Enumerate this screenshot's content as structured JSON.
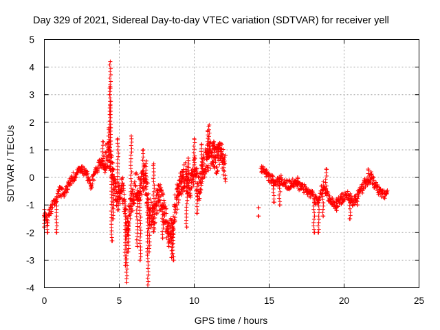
{
  "chart_data": {
    "type": "scatter",
    "title": "Day 329 of 2021, Sidereal Day-to-day VTEC variation (SDTVAR) for receiver yell",
    "xlabel": "GPS time / hours",
    "ylabel": "SDTVAR / TECUs",
    "xlim": [
      0,
      25
    ],
    "ylim": [
      -4,
      5
    ],
    "xticks": [
      "0",
      "5",
      "10",
      "15",
      "20",
      "25"
    ],
    "yticks": [
      "-4",
      "-3",
      "-2",
      "-1",
      "0",
      "1",
      "2",
      "3",
      "4",
      "5"
    ],
    "grid": true,
    "marker": "+",
    "color": "#ff0000",
    "data_gap_hours": [
      12.3,
      14.3
    ],
    "trend_points": [
      [
        0.0,
        -1.3
      ],
      [
        0.2,
        -1.6
      ],
      [
        0.4,
        -1.2
      ],
      [
        0.6,
        -1.0
      ],
      [
        0.8,
        -0.8
      ],
      [
        1.0,
        -0.5
      ],
      [
        1.3,
        -0.6
      ],
      [
        1.6,
        -0.3
      ],
      [
        1.9,
        0.0
      ],
      [
        2.2,
        0.2
      ],
      [
        2.5,
        0.3
      ],
      [
        2.8,
        0.1
      ],
      [
        3.1,
        -0.3
      ],
      [
        3.4,
        0.2
      ],
      [
        3.7,
        0.5
      ],
      [
        4.0,
        0.6
      ],
      [
        4.3,
        0.9
      ],
      [
        4.6,
        0.0
      ],
      [
        4.9,
        -0.8
      ],
      [
        5.2,
        -0.3
      ],
      [
        5.5,
        -1.8
      ],
      [
        5.8,
        -1.0
      ],
      [
        6.1,
        -0.3
      ],
      [
        6.4,
        -0.5
      ],
      [
        6.7,
        0.1
      ],
      [
        7.0,
        -1.2
      ],
      [
        7.3,
        -1.6
      ],
      [
        7.6,
        -0.6
      ],
      [
        7.9,
        -1.0
      ],
      [
        8.2,
        -1.8
      ],
      [
        8.5,
        -2.0
      ],
      [
        8.8,
        -0.8
      ],
      [
        9.1,
        -0.3
      ],
      [
        9.4,
        0.1
      ],
      [
        9.7,
        -0.4
      ],
      [
        10.0,
        0.3
      ],
      [
        10.3,
        -0.5
      ],
      [
        10.6,
        0.4
      ],
      [
        10.9,
        0.7
      ],
      [
        11.2,
        0.9
      ],
      [
        11.5,
        0.6
      ],
      [
        11.8,
        0.9
      ],
      [
        12.1,
        0.3
      ],
      [
        14.4,
        0.4
      ],
      [
        14.7,
        0.2
      ],
      [
        15.0,
        0.0
      ],
      [
        15.4,
        -0.2
      ],
      [
        15.8,
        -0.1
      ],
      [
        16.2,
        -0.3
      ],
      [
        16.6,
        -0.2
      ],
      [
        17.0,
        -0.3
      ],
      [
        17.4,
        -0.4
      ],
      [
        17.8,
        -0.6
      ],
      [
        18.2,
        -0.9
      ],
      [
        18.6,
        -0.3
      ],
      [
        19.0,
        -0.8
      ],
      [
        19.4,
        -1.0
      ],
      [
        19.8,
        -0.8
      ],
      [
        20.2,
        -0.6
      ],
      [
        20.6,
        -0.9
      ],
      [
        21.0,
        -0.6
      ],
      [
        21.4,
        -0.2
      ],
      [
        21.8,
        0.0
      ],
      [
        22.2,
        -0.4
      ],
      [
        22.6,
        -0.6
      ],
      [
        22.9,
        -0.6
      ]
    ],
    "spikes": [
      [
        0.0,
        -1.8
      ],
      [
        0.2,
        -2.0
      ],
      [
        0.8,
        -2.0
      ],
      [
        3.9,
        1.3
      ],
      [
        4.3,
        1.8
      ],
      [
        4.4,
        4.2
      ],
      [
        4.4,
        3.3
      ],
      [
        4.4,
        2.6
      ],
      [
        4.6,
        -1.5
      ],
      [
        4.5,
        -2.3
      ],
      [
        4.9,
        1.4
      ],
      [
        5.5,
        -3.8
      ],
      [
        5.4,
        -3.2
      ],
      [
        5.6,
        -2.7
      ],
      [
        5.8,
        1.5
      ],
      [
        6.2,
        -2.5
      ],
      [
        6.4,
        -3.0
      ],
      [
        6.6,
        1.0
      ],
      [
        6.8,
        0.6
      ],
      [
        6.9,
        -3.9
      ],
      [
        7.0,
        -2.7
      ],
      [
        7.3,
        0.5
      ],
      [
        7.5,
        -1.0
      ],
      [
        7.9,
        -2.2
      ],
      [
        8.3,
        -2.5
      ],
      [
        8.5,
        -2.9
      ],
      [
        8.6,
        -3.0
      ],
      [
        8.9,
        -0.3
      ],
      [
        9.2,
        0.2
      ],
      [
        9.5,
        -1.8
      ],
      [
        9.6,
        0.7
      ],
      [
        10.0,
        1.4
      ],
      [
        10.2,
        -1.3
      ],
      [
        10.5,
        1.2
      ],
      [
        10.9,
        1.7
      ],
      [
        11.0,
        1.9
      ],
      [
        11.3,
        1.3
      ],
      [
        11.6,
        1.2
      ],
      [
        14.3,
        -1.4
      ],
      [
        14.3,
        -1.1
      ],
      [
        15.3,
        -0.9
      ],
      [
        15.7,
        -1.0
      ],
      [
        16.9,
        0.0
      ],
      [
        17.6,
        -0.5
      ],
      [
        18.0,
        -2.0
      ],
      [
        18.3,
        -2.0
      ],
      [
        18.6,
        -1.4
      ],
      [
        18.8,
        0.3
      ],
      [
        19.5,
        -1.2
      ],
      [
        20.4,
        -1.5
      ],
      [
        20.9,
        -1.0
      ],
      [
        21.6,
        0.3
      ],
      [
        21.8,
        0.2
      ]
    ]
  }
}
